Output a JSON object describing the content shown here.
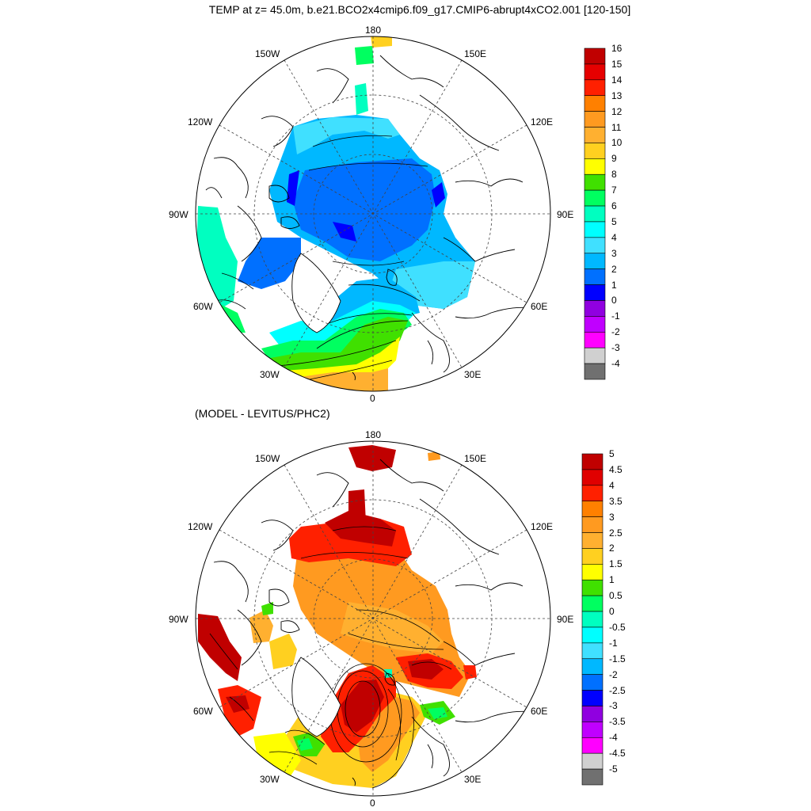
{
  "title": "TEMP at z=  45.0m, b.e21.BCO2x4cmip6.f09_g17.CMIP6-abrupt4xCO2.001 [120-150]",
  "subtitle": "(MODEL - LEVITUS/PHC2)",
  "maps": [
    {
      "name": "top-map",
      "lon_labels": [
        "180",
        "150E",
        "120E",
        "90E",
        "60E",
        "30E",
        "0",
        "30W",
        "60W",
        "90W",
        "120W",
        "150W"
      ],
      "colorbar": {
        "labels": [
          "16",
          "15",
          "14",
          "13",
          "12",
          "11",
          "10",
          "9",
          "8",
          "7",
          "6",
          "5",
          "4",
          "3",
          "2",
          "1",
          "0",
          "-1",
          "-2",
          "-3",
          "-4"
        ],
        "colors": [
          "#c00000",
          "#e60000",
          "#ff2000",
          "#ff8000",
          "#ff9a20",
          "#ffb030",
          "#ffd020",
          "#ffff00",
          "#40e000",
          "#00ff60",
          "#00ffc0",
          "#00ffff",
          "#40e0ff",
          "#00b8ff",
          "#0070ff",
          "#0000ff",
          "#9000e0",
          "#c000ff",
          "#ff00ff",
          "#d0d0d0",
          "#707070"
        ]
      }
    },
    {
      "name": "bottom-map",
      "lon_labels": [
        "180",
        "150E",
        "120E",
        "90E",
        "60E",
        "30E",
        "0",
        "30W",
        "60W",
        "90W",
        "120W",
        "150W"
      ],
      "colorbar": {
        "labels": [
          "5",
          "4.5",
          "4",
          "3.5",
          "3",
          "2.5",
          "2",
          "1.5",
          "1",
          "0.5",
          "0",
          "-0.5",
          "-1",
          "-1.5",
          "-2",
          "-2.5",
          "-3",
          "-3.5",
          "-4",
          "-4.5",
          "-5"
        ],
        "colors": [
          "#c00000",
          "#e00000",
          "#ff2000",
          "#ff8000",
          "#ff9a20",
          "#ffb030",
          "#ffd020",
          "#ffff00",
          "#40e000",
          "#00ff60",
          "#00ffc0",
          "#00ffff",
          "#40e0ff",
          "#00b8ff",
          "#0070ff",
          "#0000ff",
          "#9000e0",
          "#c000ff",
          "#ff00ff",
          "#d0d0d0",
          "#707070"
        ]
      }
    }
  ]
}
